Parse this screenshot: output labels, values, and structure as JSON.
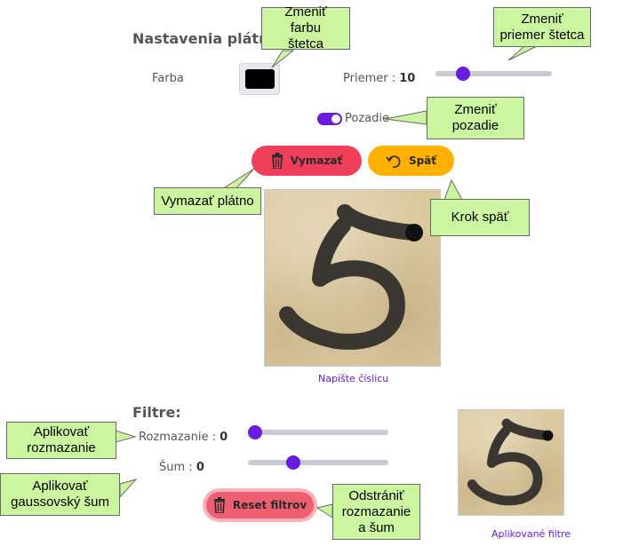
{
  "settings": {
    "title": "Nastavenia plátna",
    "color_label": "Farba",
    "color_value": "#000000",
    "size_label": "Priemer : ",
    "size_value": "10",
    "size_level": 0.2,
    "background_label": "Pozadie",
    "background_on": true
  },
  "buttons": {
    "clear": "Vymazať",
    "undo": "Späť",
    "reset_filters": "Reset filtrov"
  },
  "canvas": {
    "caption": "Napíšte číslicu"
  },
  "filters": {
    "title": "Filtre:",
    "blur_label": "Rozmazanie : ",
    "blur_value": "0",
    "blur_level": 0.0,
    "noise_label": "Šum : ",
    "noise_value": "0",
    "noise_level": 0.3,
    "result_caption": "Aplikované filtre"
  },
  "callouts": {
    "change_color": "Zmeniť farbu štetca",
    "change_size": "Zmeniť priemer štetca",
    "change_background": "Zmeniť pozadie",
    "clear_canvas": "Vymazať plátno",
    "undo_step": "Krok späť",
    "apply_blur": "Aplikovať rozmazanie",
    "apply_noise": "Aplikovať gaussovský šum",
    "remove_filters": "Odstrániť rozmazanie a šum"
  },
  "colors": {
    "accent": "#6a1be0",
    "clear_button": "#ef3f5a",
    "undo_button": "#ffb000",
    "callout": "#ccf5a0"
  },
  "icons": {
    "clear": "trash-icon",
    "undo": "undo-icon",
    "reset": "trash-icon"
  }
}
